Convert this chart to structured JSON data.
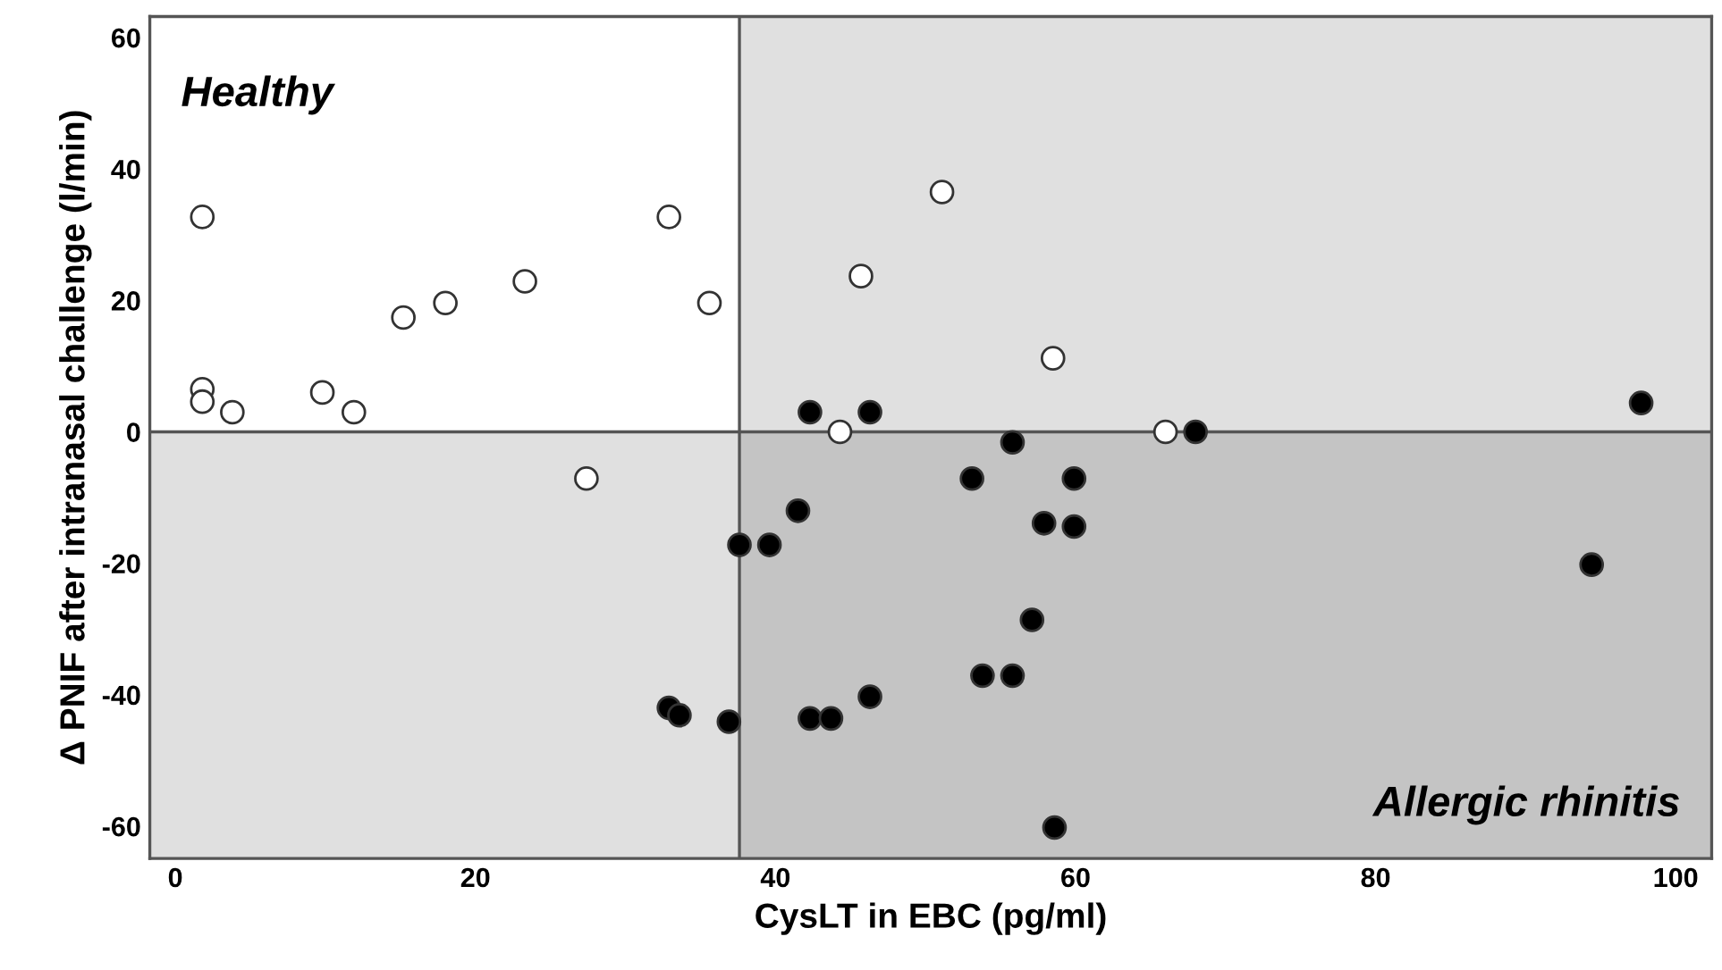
{
  "chart_data": {
    "type": "scatter",
    "xlabel": "CysLT in EBC (pg/ml)",
    "ylabel": "Δ PNIF after intranasal challenge (l/min)",
    "annotations": [
      "Healthy",
      "Allergic rhinitis"
    ],
    "xlim": [
      -1.7,
      102.4
    ],
    "ylim": [
      -64.9,
      63.2
    ],
    "xticks": [
      0,
      20,
      40,
      60,
      80,
      100
    ],
    "yticks": [
      -60,
      -40,
      -20,
      0,
      20,
      40,
      60
    ],
    "grid": false,
    "legend": false,
    "marker": "circle",
    "ref_lines": [
      {
        "axis": "x",
        "value": 37.6,
        "color": "#555555"
      },
      {
        "axis": "y",
        "value": 0,
        "color": "#555555"
      }
    ],
    "bands": [
      {
        "axis": "x",
        "from": 37.6,
        "to": 102.4
      },
      {
        "axis": "y",
        "from": -64.9,
        "to": 0
      }
    ],
    "series": [
      {
        "color": "#ffffff",
        "x": [
          1.8,
          1.8,
          1.8,
          3.8,
          9.8,
          11.9,
          15.2,
          18.0,
          23.3,
          27.4,
          32.9,
          35.6,
          44.3,
          45.7,
          51.1,
          58.5,
          66.0
        ],
        "values": [
          32.7,
          6.5,
          4.6,
          3.0,
          6.0,
          3.0,
          17.4,
          19.6,
          22.9,
          -7.1,
          32.7,
          19.6,
          0,
          23.7,
          36.5,
          11.2,
          0
        ]
      },
      {
        "color": "#000000",
        "x": [
          42.3,
          46.3,
          55.8,
          53.1,
          59.9,
          41.5,
          57.9,
          59.9,
          37.6,
          39.6,
          57.1,
          53.8,
          55.8,
          46.3,
          32.9,
          33.6,
          36.9,
          42.3,
          43.7,
          58.6,
          68.0,
          97.7,
          94.4
        ],
        "values": [
          3.0,
          3.0,
          -1.6,
          -7.1,
          -7.1,
          -12.0,
          -13.9,
          -14.4,
          -17.2,
          -17.2,
          -28.6,
          -37.1,
          -37.1,
          -40.3,
          -42.0,
          -43.1,
          -44.1,
          -43.6,
          -43.6,
          -60.2,
          0,
          4.4,
          -20.2
        ]
      }
    ]
  }
}
